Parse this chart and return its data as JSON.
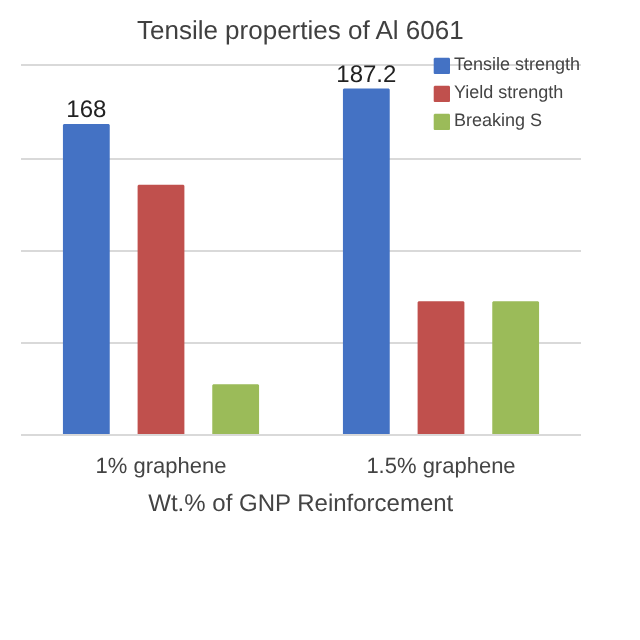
{
  "chart_data": {
    "type": "bar",
    "title": "Tensile properties of Al 6061",
    "xlabel": "Wt.% of GNP Reinforcement",
    "categories": [
      "1% graphene",
      "1.5% graphene"
    ],
    "series": [
      {
        "name": "Tensile strength",
        "color": "#4472c4",
        "values": [
          168,
          187.2
        ],
        "value_labels": [
          "168",
          "187.2"
        ]
      },
      {
        "name": "Yield strength",
        "color": "#c0504d",
        "values": [
          135,
          72
        ]
      },
      {
        "name": "Breaking S",
        "color": "#9bbb59",
        "values": [
          27,
          72
        ]
      }
    ],
    "yticks": [
      {
        "value": 0,
        "label": null
      },
      {
        "value": 50,
        "label": null
      },
      {
        "value": 100,
        "label": null
      },
      {
        "value": 150,
        "label": null
      },
      {
        "value": 200,
        "label": null
      }
    ],
    "grid": "y",
    "legend": "top right",
    "tick_labels": "x"
  }
}
